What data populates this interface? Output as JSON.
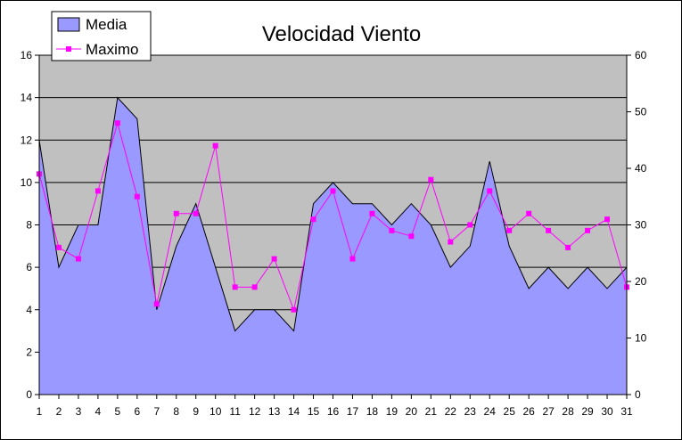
{
  "chart_data": {
    "type": "area",
    "title": "Velocidad Viento",
    "categories": [
      "1",
      "2",
      "3",
      "4",
      "5",
      "6",
      "7",
      "8",
      "9",
      "10",
      "11",
      "12",
      "13",
      "14",
      "15",
      "16",
      "17",
      "18",
      "19",
      "20",
      "21",
      "22",
      "23",
      "24",
      "25",
      "26",
      "27",
      "28",
      "29",
      "30",
      "31"
    ],
    "series": [
      {
        "name": "Media",
        "type": "area",
        "axis": "left",
        "color": "#9999ff",
        "values": [
          12,
          6,
          8,
          8,
          14,
          13,
          4,
          7,
          9,
          6,
          3,
          4,
          4,
          3,
          9,
          10,
          9,
          9,
          8,
          9,
          8,
          6,
          7,
          11,
          7,
          5,
          6,
          5,
          6,
          5,
          6
        ]
      },
      {
        "name": "Maximo",
        "type": "line",
        "axis": "right",
        "color": "#ff00ff",
        "values": [
          39,
          26,
          24,
          36,
          48,
          35,
          16,
          32,
          32,
          44,
          19,
          19,
          24,
          15,
          31,
          36,
          24,
          32,
          29,
          28,
          38,
          27,
          30,
          36,
          29,
          32,
          29,
          26,
          29,
          31,
          19
        ]
      }
    ],
    "y_left": {
      "range": [
        0,
        16
      ],
      "ticks": [
        "0",
        "2",
        "4",
        "6",
        "8",
        "10",
        "12",
        "14",
        "16"
      ]
    },
    "y_right": {
      "range": [
        0,
        60
      ],
      "ticks": [
        "0",
        "10",
        "20",
        "30",
        "40",
        "50",
        "60"
      ]
    },
    "grid": true,
    "plot_background": "#c0c0c0",
    "legend": "top-left"
  }
}
